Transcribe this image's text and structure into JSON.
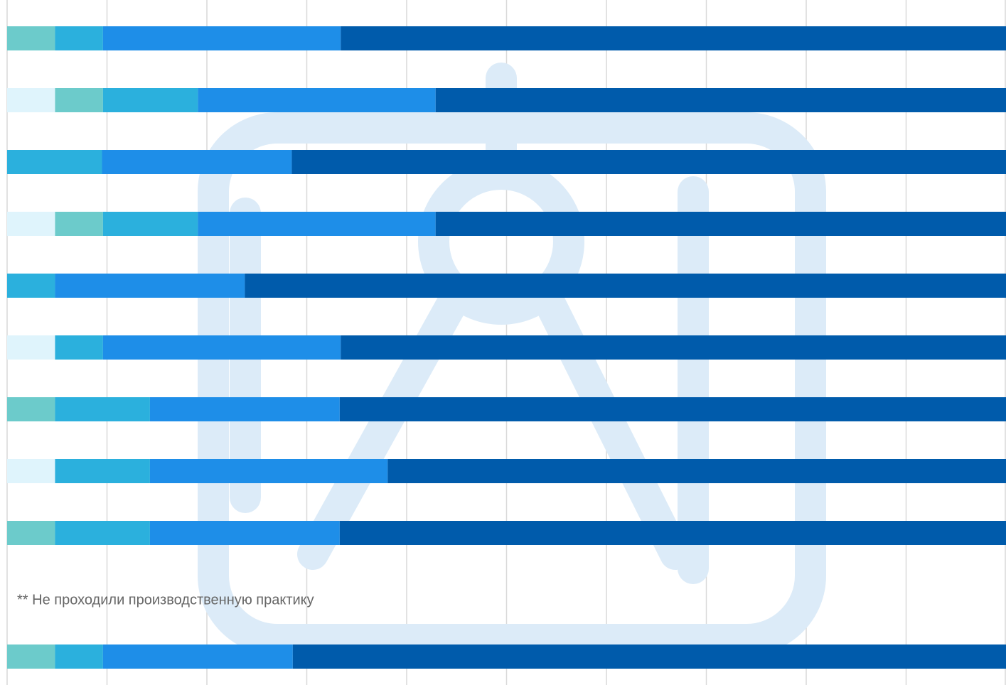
{
  "chart_data": {
    "type": "stacked-barh",
    "annotation": "** Не проходили производственную практику",
    "categories": [
      null,
      null,
      null,
      null,
      null,
      null,
      null,
      null,
      null,
      null,
      null
    ],
    "series": [
      {
        "color": "#dff4fc",
        "values": [
          0,
          4.8,
          0,
          4.8,
          0,
          4.8,
          0,
          4.8,
          0,
          null,
          0
        ]
      },
      {
        "color": "#6ccbcb",
        "values": [
          4.8,
          4.8,
          0,
          4.8,
          0,
          0,
          4.8,
          0,
          4.8,
          null,
          4.8
        ]
      },
      {
        "color": "#2bb0dd",
        "values": [
          4.8,
          9.5,
          9.5,
          9.5,
          4.8,
          4.8,
          9.5,
          9.5,
          9.5,
          null,
          4.8
        ]
      },
      {
        "color": "#1e8ee8",
        "values": [
          23.8,
          23.8,
          19.0,
          23.8,
          19.0,
          23.8,
          19.0,
          23.8,
          19.0,
          null,
          19.0
        ]
      },
      {
        "color": "#005bab",
        "values": [
          66.6,
          57.1,
          71.5,
          57.1,
          76.2,
          66.6,
          66.7,
          61.9,
          66.7,
          null,
          71.4
        ]
      }
    ],
    "xlim": [
      0,
      100
    ],
    "xticks": [
      0,
      10,
      20,
      30,
      40,
      50,
      60,
      70,
      80,
      90,
      100
    ],
    "grid": true
  }
}
